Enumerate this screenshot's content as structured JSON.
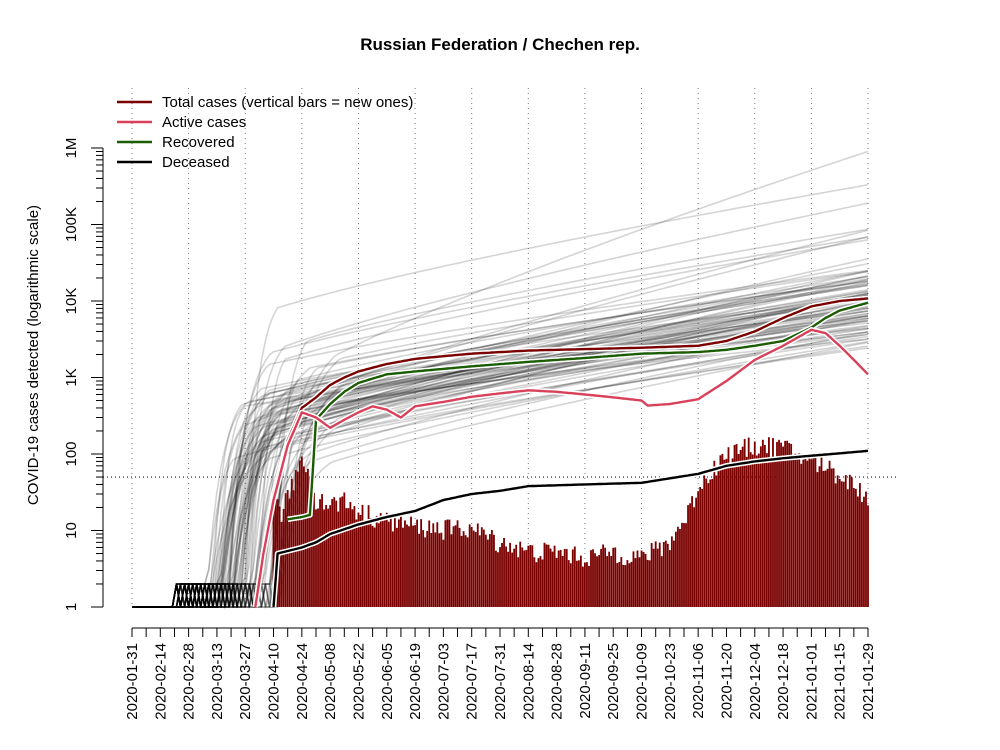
{
  "chart_data": {
    "type": "line",
    "title": "Russian Federation / Chechen rep.",
    "ylabel": "COVID-19 cases detected (logarithmic scale)",
    "xlabel": "",
    "y_scale": "log",
    "ylim": [
      1,
      1000000
    ],
    "xlim": [
      "2020-01-31",
      "2021-01-29"
    ],
    "y_ticks": [
      {
        "value": 1,
        "label": "1"
      },
      {
        "value": 10,
        "label": "10"
      },
      {
        "value": 100,
        "label": "100"
      },
      {
        "value": 1000,
        "label": "1K"
      },
      {
        "value": 10000,
        "label": "10K"
      },
      {
        "value": 100000,
        "label": "100K"
      },
      {
        "value": 1000000,
        "label": "1M"
      }
    ],
    "x_ticks": [
      "2020-01-31",
      "2020-02-14",
      "2020-02-28",
      "2020-03-13",
      "2020-03-27",
      "2020-04-10",
      "2020-04-24",
      "2020-05-08",
      "2020-05-22",
      "2020-06-05",
      "2020-06-19",
      "2020-07-03",
      "2020-07-17",
      "2020-07-31",
      "2020-08-14",
      "2020-08-28",
      "2020-09-11",
      "2020-09-25",
      "2020-10-09",
      "2020-10-23",
      "2020-11-06",
      "2020-11-20",
      "2020-12-04",
      "2020-12-18",
      "2021-01-01",
      "2021-01-15",
      "2021-01-29"
    ],
    "grid": "vertical dotted lines every 4 weeks",
    "reference_line": {
      "value": 50,
      "style": "dotted horizontal"
    },
    "legend_placement": "top-left",
    "series": [
      {
        "name": "Total cases (vertical bars = new ones)",
        "color": "#7a0000",
        "points": [
          [
            "2020-04-01",
            1
          ],
          [
            "2020-04-05",
            5
          ],
          [
            "2020-04-10",
            30
          ],
          [
            "2020-04-17",
            150
          ],
          [
            "2020-04-24",
            400
          ],
          [
            "2020-05-01",
            550
          ],
          [
            "2020-05-08",
            800
          ],
          [
            "2020-05-15",
            1000
          ],
          [
            "2020-05-22",
            1200
          ],
          [
            "2020-06-05",
            1500
          ],
          [
            "2020-06-19",
            1750
          ],
          [
            "2020-07-03",
            1900
          ],
          [
            "2020-07-17",
            2050
          ],
          [
            "2020-08-14",
            2250
          ],
          [
            "2020-09-11",
            2350
          ],
          [
            "2020-10-09",
            2450
          ],
          [
            "2020-11-06",
            2600
          ],
          [
            "2020-11-20",
            3000
          ],
          [
            "2020-12-04",
            4000
          ],
          [
            "2020-12-18",
            6000
          ],
          [
            "2021-01-01",
            8500
          ],
          [
            "2021-01-15",
            10000
          ],
          [
            "2021-01-29",
            10800
          ]
        ]
      },
      {
        "name": "Active cases",
        "color": "#d9415a",
        "points": [
          [
            "2020-04-01",
            1
          ],
          [
            "2020-04-05",
            5
          ],
          [
            "2020-04-10",
            25
          ],
          [
            "2020-04-17",
            130
          ],
          [
            "2020-04-24",
            350
          ],
          [
            "2020-05-01",
            300
          ],
          [
            "2020-05-08",
            220
          ],
          [
            "2020-05-15",
            280
          ],
          [
            "2020-05-22",
            350
          ],
          [
            "2020-05-29",
            420
          ],
          [
            "2020-06-05",
            380
          ],
          [
            "2020-06-12",
            300
          ],
          [
            "2020-06-19",
            420
          ],
          [
            "2020-07-03",
            480
          ],
          [
            "2020-07-17",
            560
          ],
          [
            "2020-07-31",
            620
          ],
          [
            "2020-08-14",
            680
          ],
          [
            "2020-08-28",
            650
          ],
          [
            "2020-09-11",
            600
          ],
          [
            "2020-09-25",
            550
          ],
          [
            "2020-10-09",
            500
          ],
          [
            "2020-10-12",
            430
          ],
          [
            "2020-10-23",
            450
          ],
          [
            "2020-11-06",
            520
          ],
          [
            "2020-11-20",
            900
          ],
          [
            "2020-12-04",
            1700
          ],
          [
            "2020-12-18",
            2600
          ],
          [
            "2021-01-01",
            4200
          ],
          [
            "2021-01-08",
            3800
          ],
          [
            "2021-01-15",
            2600
          ],
          [
            "2021-01-22",
            1700
          ],
          [
            "2021-01-29",
            1100
          ]
        ]
      },
      {
        "name": "Recovered",
        "color": "#1a5c00",
        "points": [
          [
            "2020-04-17",
            14
          ],
          [
            "2020-04-24",
            15
          ],
          [
            "2020-04-28",
            16
          ],
          [
            "2020-05-01",
            280
          ],
          [
            "2020-05-08",
            450
          ],
          [
            "2020-05-15",
            650
          ],
          [
            "2020-05-22",
            850
          ],
          [
            "2020-06-05",
            1100
          ],
          [
            "2020-06-19",
            1200
          ],
          [
            "2020-07-17",
            1400
          ],
          [
            "2020-08-14",
            1600
          ],
          [
            "2020-09-11",
            1800
          ],
          [
            "2020-10-09",
            2050
          ],
          [
            "2020-11-06",
            2150
          ],
          [
            "2020-11-20",
            2300
          ],
          [
            "2020-12-04",
            2600
          ],
          [
            "2020-12-18",
            3000
          ],
          [
            "2021-01-01",
            4500
          ],
          [
            "2021-01-08",
            6000
          ],
          [
            "2021-01-15",
            7500
          ],
          [
            "2021-01-29",
            9500
          ]
        ]
      },
      {
        "name": "Deceased",
        "color": "#000000",
        "points": [
          [
            "2020-04-10",
            1
          ],
          [
            "2020-04-12",
            5
          ],
          [
            "2020-04-24",
            6
          ],
          [
            "2020-05-01",
            7
          ],
          [
            "2020-05-08",
            9
          ],
          [
            "2020-05-22",
            12
          ],
          [
            "2020-06-05",
            15
          ],
          [
            "2020-06-19",
            18
          ],
          [
            "2020-07-03",
            25
          ],
          [
            "2020-07-17",
            30
          ],
          [
            "2020-07-31",
            33
          ],
          [
            "2020-08-14",
            38
          ],
          [
            "2020-09-11",
            40
          ],
          [
            "2020-10-09",
            42
          ],
          [
            "2020-11-06",
            55
          ],
          [
            "2020-11-20",
            70
          ],
          [
            "2020-12-04",
            80
          ],
          [
            "2020-12-18",
            88
          ],
          [
            "2021-01-01",
            95
          ],
          [
            "2021-01-15",
            102
          ],
          [
            "2021-01-29",
            110
          ]
        ]
      }
    ],
    "new_cases_bars": {
      "color": "#7a0000",
      "points": [
        [
          "2020-04-10",
          30
        ],
        [
          "2020-04-14",
          20
        ],
        [
          "2020-04-18",
          35
        ],
        [
          "2020-04-21",
          60
        ],
        [
          "2020-04-24",
          100
        ],
        [
          "2020-04-27",
          70
        ],
        [
          "2020-05-01",
          30
        ],
        [
          "2020-05-08",
          25
        ],
        [
          "2020-05-15",
          28
        ],
        [
          "2020-05-22",
          20
        ],
        [
          "2020-05-29",
          18
        ],
        [
          "2020-06-05",
          15
        ],
        [
          "2020-06-19",
          13
        ],
        [
          "2020-07-03",
          12
        ],
        [
          "2020-07-17",
          12
        ],
        [
          "2020-07-31",
          8
        ],
        [
          "2020-08-14",
          6
        ],
        [
          "2020-08-28",
          6
        ],
        [
          "2020-09-11",
          5
        ],
        [
          "2020-09-25",
          6
        ],
        [
          "2020-10-09",
          5
        ],
        [
          "2020-10-23",
          8
        ],
        [
          "2020-10-30",
          15
        ],
        [
          "2020-11-06",
          40
        ],
        [
          "2020-11-13",
          70
        ],
        [
          "2020-11-20",
          110
        ],
        [
          "2020-12-04",
          150
        ],
        [
          "2020-12-18",
          140
        ],
        [
          "2021-01-01",
          90
        ],
        [
          "2021-01-08",
          80
        ],
        [
          "2021-01-15",
          60
        ],
        [
          "2021-01-22",
          45
        ],
        [
          "2021-01-29",
          30
        ]
      ]
    },
    "background_series_count": 85,
    "background_color": "#bdbdbd"
  }
}
